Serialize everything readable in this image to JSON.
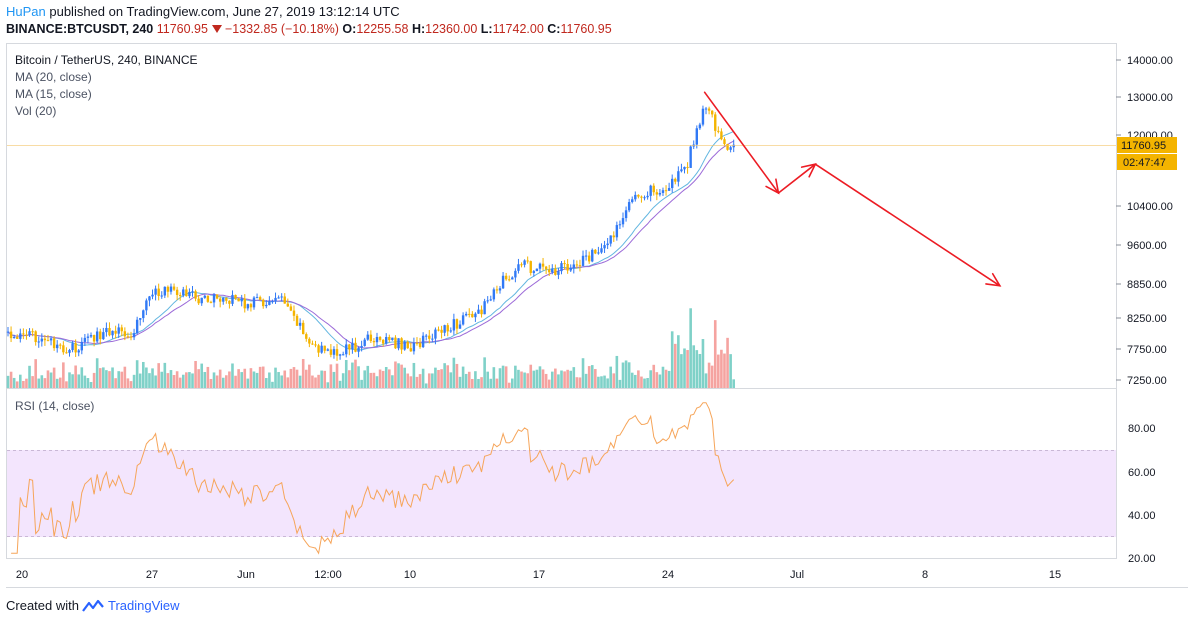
{
  "header": {
    "author": "HuPan",
    "published_text": " published on TradingView.com, June 27, 2019 13:12:14 UTC",
    "symbol": "BINANCE:BTCUSDT, 240",
    "last_price": "11760.95",
    "change": "−1332.85 (−10.18%)",
    "open_label": "O:",
    "open_value": "12255.58",
    "high_label": "H:",
    "high_value": "12360.00",
    "low_label": "L:",
    "low_value": "11742.00",
    "close_label": "C:",
    "close_value": "11760.95"
  },
  "legend": {
    "title": "Bitcoin / TetherUS, 240, BINANCE",
    "ma20": "MA (20, close)",
    "ma15": "MA (15, close)",
    "vol": "Vol (20)",
    "rsi": "RSI (14, close)"
  },
  "price_tag": "11760.95",
  "countdown_tag": "02:47:47",
  "footer": {
    "created_with": "Created with",
    "brand": "TradingView"
  },
  "colors": {
    "up": "#3179f5",
    "down": "#f4b400",
    "ma20": "#9c6ad8",
    "ma15": "#62b6e0",
    "rsi": "#f6a55a",
    "rsi_band": "#f3e5fd",
    "arrows": "#ec1c24",
    "price_tag": "#f4b400",
    "vol_up": "#7fd1c8",
    "vol_down": "#f5a3a0"
  },
  "chart_data": {
    "type": "candlestick",
    "price_axis": {
      "ticks": [
        14000,
        13000,
        12000,
        10400,
        9600,
        8850,
        8250,
        7750,
        7250
      ],
      "tick_labels": [
        "14000.00",
        "13000.00",
        "12000.00",
        "10400.00",
        "9600.00",
        "8850.00",
        "8250.00",
        "7750.00",
        "7250.00"
      ],
      "scale": "log"
    },
    "rsi_axis": {
      "ticks": [
        80,
        60,
        40,
        20
      ],
      "tick_labels": [
        "80.00",
        "60.00",
        "40.00",
        "20.00"
      ],
      "band": [
        30,
        70
      ]
    },
    "time_axis": {
      "labels": [
        "20",
        "27",
        "Jun",
        "12:00",
        "10",
        "17",
        "24",
        "Jul",
        "8",
        "15"
      ]
    },
    "price_path": [
      [
        "2019-05-19",
        8000
      ],
      [
        "2019-05-20",
        7900
      ],
      [
        "2019-05-21",
        7950
      ],
      [
        "2019-05-22",
        7700
      ],
      [
        "2019-05-23",
        7750
      ],
      [
        "2019-05-24",
        7950
      ],
      [
        "2019-05-25",
        8050
      ],
      [
        "2019-05-26",
        8000
      ],
      [
        "2019-05-27",
        8700
      ],
      [
        "2019-05-28",
        8700
      ],
      [
        "2019-05-29",
        8650
      ],
      [
        "2019-05-30",
        8550
      ],
      [
        "2019-05-31",
        8600
      ],
      [
        "2019-06-01",
        8500
      ],
      [
        "2019-06-02",
        8500
      ],
      [
        "2019-06-03",
        8550
      ],
      [
        "2019-06-04",
        8100
      ],
      [
        "2019-06-05",
        7700
      ],
      [
        "2019-06-06",
        7700
      ],
      [
        "2019-06-07",
        7750
      ],
      [
        "2019-06-08",
        7900
      ],
      [
        "2019-06-09",
        7850
      ],
      [
        "2019-06-10",
        7750
      ],
      [
        "2019-06-11",
        7900
      ],
      [
        "2019-06-12",
        8100
      ],
      [
        "2019-06-13",
        8200
      ],
      [
        "2019-06-14",
        8400
      ],
      [
        "2019-06-15",
        8850
      ],
      [
        "2019-06-16",
        9200
      ],
      [
        "2019-06-17",
        9100
      ],
      [
        "2019-06-18",
        9100
      ],
      [
        "2019-06-19",
        9150
      ],
      [
        "2019-06-20",
        9400
      ],
      [
        "2019-06-21",
        9700
      ],
      [
        "2019-06-22",
        10600
      ],
      [
        "2019-06-23",
        10700
      ],
      [
        "2019-06-24",
        10750
      ],
      [
        "2019-06-25",
        11200
      ],
      [
        "2019-06-26",
        12800
      ],
      [
        "2019-06-27",
        11760.95
      ]
    ],
    "annotation_arrow_path": [
      [
        "2019-06-26",
        13100
      ],
      [
        "2019-06-30",
        10650
      ],
      [
        "2019-07-02",
        11300
      ],
      [
        "2019-07-12",
        8800
      ]
    ],
    "last_close": 11760.95
  }
}
